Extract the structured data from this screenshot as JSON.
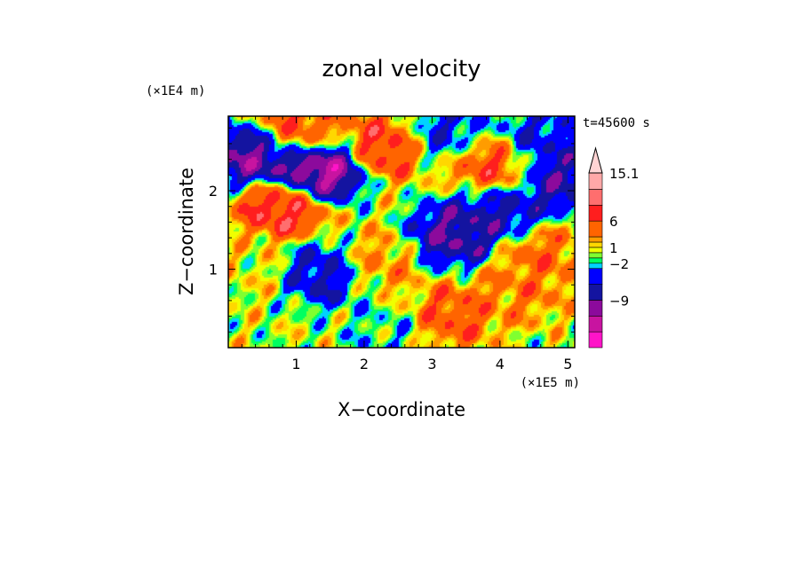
{
  "chart_data": {
    "type": "heatmap",
    "title": "zonal velocity",
    "xlabel": "X−coordinate",
    "ylabel": "Z−coordinate",
    "x_unit": "(×1E5 m)",
    "y_unit": "(×1E4 m)",
    "time_label": "t=45600 s",
    "xlim": [
      0,
      5.1
    ],
    "ylim": [
      0,
      2.95
    ],
    "x_ticks": [
      1,
      2,
      3,
      4,
      5
    ],
    "y_ticks": [
      1,
      2
    ],
    "grid": false,
    "colorbar": {
      "placement": "right",
      "tick_labels": [
        "15.1",
        "6",
        "1",
        "−2",
        "−9"
      ],
      "tick_values": [
        15.1,
        6,
        1,
        -2,
        -9
      ],
      "levels": [
        -15,
        -12,
        -9,
        -6,
        -3,
        -2,
        -1,
        0,
        1,
        2,
        3,
        6,
        9,
        12,
        15.1
      ],
      "colors": [
        "#ff14c8",
        "#c814a0",
        "#8c0a9c",
        "#1414a0",
        "#0000ff",
        "#00d2ff",
        "#00ff60",
        "#80ff30",
        "#f0ff00",
        "#ffd700",
        "#ff9c00",
        "#ff6400",
        "#ff1e1e",
        "#ff6e6e",
        "#ffa8a8",
        "#ffd4d4"
      ]
    },
    "field_pattern": [
      {
        "x": 0.45,
        "z": 2.45,
        "value": -12
      },
      {
        "x": 1.3,
        "z": 2.25,
        "value": -15
      },
      {
        "x": 3.1,
        "z": 2.75,
        "value": -6
      },
      {
        "x": 3.35,
        "z": 1.45,
        "value": -10
      },
      {
        "x": 4.0,
        "z": 1.75,
        "value": -8
      },
      {
        "x": 4.6,
        "z": 2.65,
        "value": -6
      },
      {
        "x": 4.9,
        "z": 2.15,
        "value": -9
      },
      {
        "x": 1.5,
        "z": 0.95,
        "value": -8
      },
      {
        "x": 2.3,
        "z": 0.2,
        "value": -2
      },
      {
        "x": 0.8,
        "z": 1.8,
        "value": 9
      },
      {
        "x": 2.4,
        "z": 2.6,
        "value": 8
      },
      {
        "x": 1.0,
        "z": 2.75,
        "value": 7
      },
      {
        "x": 3.3,
        "z": 0.4,
        "value": 6
      },
      {
        "x": 3.9,
        "z": 2.3,
        "value": 7
      },
      {
        "x": 4.6,
        "z": 1.15,
        "value": 5
      },
      {
        "x": 2.1,
        "z": 1.05,
        "value": 4
      },
      {
        "x": 0.2,
        "z": 1.0,
        "value": 1
      },
      {
        "x": 4.3,
        "z": 0.7,
        "value": 4
      }
    ]
  }
}
